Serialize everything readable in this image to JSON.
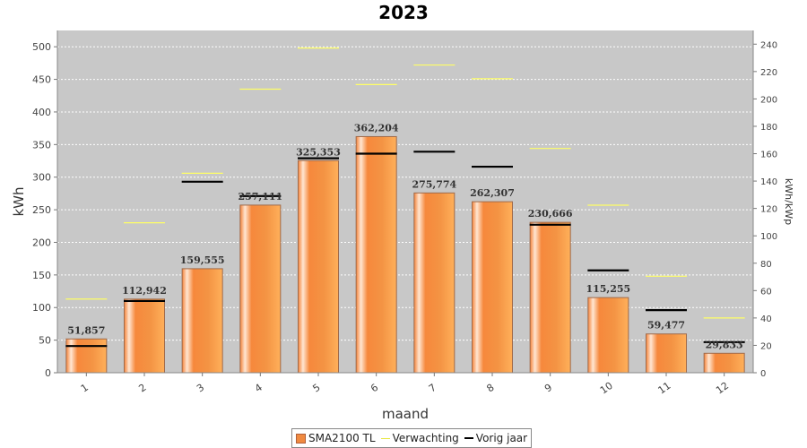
{
  "chart_data": {
    "type": "bar",
    "title": "2023",
    "xlabel": "maand",
    "ylabel": "kWh",
    "y2label": "kWh/kWp",
    "categories": [
      "1",
      "2",
      "3",
      "4",
      "5",
      "6",
      "7",
      "8",
      "9",
      "10",
      "11",
      "12"
    ],
    "ylim": [
      0,
      525
    ],
    "y2lim": [
      0,
      250
    ],
    "yticks": [
      0,
      50,
      100,
      150,
      200,
      250,
      300,
      350,
      400,
      450,
      500
    ],
    "y2ticks": [
      0,
      20,
      40,
      60,
      80,
      100,
      120,
      140,
      160,
      180,
      200,
      220,
      240
    ],
    "grid": true,
    "legend_position": "bottom",
    "series": [
      {
        "name": "SMA2100 TL",
        "kind": "bar",
        "axis": "left",
        "color": "#f08a40",
        "values": [
          51.857,
          112.942,
          159.555,
          257.111,
          325.353,
          362.204,
          275.774,
          262.307,
          230.666,
          115.255,
          59.477,
          29.833
        ],
        "labels": [
          "51,857",
          "112,942",
          "159,555",
          "257,111",
          "325,353",
          "362,204",
          "275,774",
          "262,307",
          "230,666",
          "115,255",
          "59,477",
          "29,833"
        ]
      },
      {
        "name": "Verwachting",
        "kind": "marker",
        "axis": "left",
        "color": "#ffff66",
        "values": [
          113,
          230,
          306,
          435,
          498,
          442,
          472,
          451,
          344,
          257,
          148,
          84
        ]
      },
      {
        "name": "Vorig jaar",
        "kind": "marker",
        "axis": "left",
        "color": "#000000",
        "values": [
          41,
          110,
          293,
          271,
          329,
          336,
          339,
          316,
          227,
          157,
          96,
          47
        ]
      }
    ]
  }
}
